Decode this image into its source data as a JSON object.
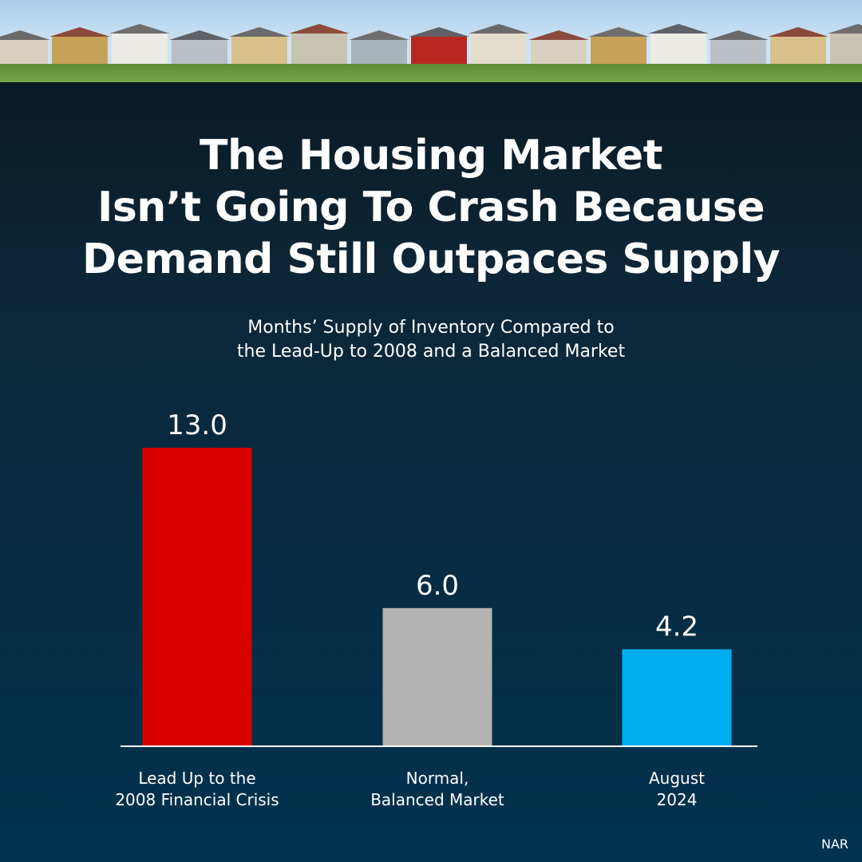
{
  "title_lines": [
    "The Housing Market",
    "Isn’t Going To Crash Because",
    "Demand Still Outpaces Supply"
  ],
  "subtitle_lines": [
    "Months’ Supply of Inventory Compared to",
    "the Lead-Up to 2008 and a Balanced Market"
  ],
  "source": "NAR",
  "chart_data": {
    "type": "bar",
    "categories": [
      [
        "Lead Up to the",
        "2008 Financial Crisis"
      ],
      [
        "Normal,",
        "Balanced Market"
      ],
      [
        "August",
        "2024"
      ]
    ],
    "values": [
      13.0,
      6.0,
      4.2
    ],
    "value_labels": [
      "13.0",
      "6.0",
      "4.2"
    ],
    "colors": [
      "#d90000",
      "#b3b3b3",
      "#00aeef"
    ],
    "ylim": [
      0,
      13
    ],
    "grid": false,
    "ylabel": "",
    "xlabel": ""
  }
}
